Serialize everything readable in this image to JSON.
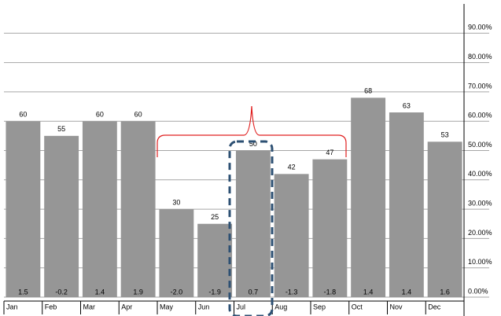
{
  "chart_data": {
    "type": "bar",
    "categories": [
      "Jan",
      "Feb",
      "Mar",
      "Apr",
      "May",
      "Jun",
      "Jul",
      "Aug",
      "Sep",
      "Oct",
      "Nov",
      "Dec"
    ],
    "values": [
      60,
      55,
      60,
      60,
      30,
      25,
      50,
      42,
      47,
      68,
      63,
      53
    ],
    "bar_notes": [
      "1.5",
      "-0.2",
      "1.4",
      "1.9",
      "-2.0",
      "-1.9",
      "0.7",
      "-1.3",
      "-1.8",
      "1.4",
      "1.4",
      "1.6"
    ],
    "color": "#969696",
    "ylim": [
      0,
      100
    ],
    "yticks": [
      {
        "value": 0,
        "label": "0.00%"
      },
      {
        "value": 10,
        "label": "10.00%"
      },
      {
        "value": 20,
        "label": "20.00%"
      },
      {
        "value": 30,
        "label": "30.00%"
      },
      {
        "value": 40,
        "label": "40.00%"
      },
      {
        "value": 50,
        "label": "50.00%"
      },
      {
        "value": 60,
        "label": "60.00%"
      },
      {
        "value": 70,
        "label": "70.00%"
      },
      {
        "value": 80,
        "label": "80.00%"
      },
      {
        "value": 90,
        "label": "90.00%"
      }
    ],
    "grid": true
  }
}
